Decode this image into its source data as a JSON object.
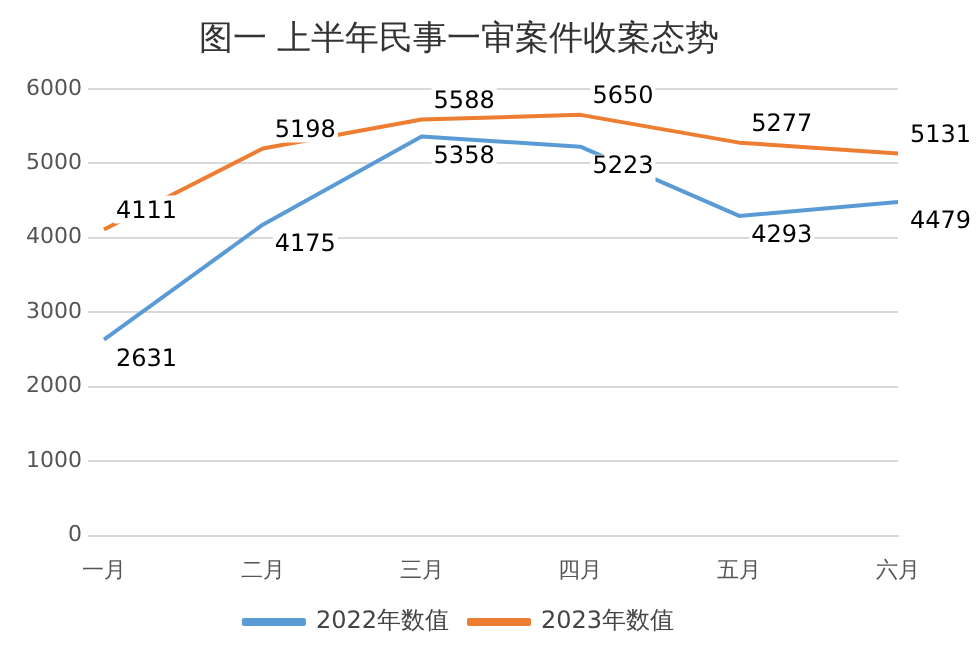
{
  "chart_data": {
    "type": "line",
    "title": "图一 上半年民事一审案件收案态势",
    "categories": [
      "一月",
      "二月",
      "三月",
      "四月",
      "五月",
      "六月"
    ],
    "series": [
      {
        "name": "2022年数值",
        "color": "#5b9bd5",
        "values": [
          2631,
          4175,
          5358,
          5223,
          4293,
          4479
        ]
      },
      {
        "name": "2023年数值",
        "color": "#ed7d31",
        "values": [
          4111,
          5198,
          5588,
          5650,
          5277,
          5131
        ]
      }
    ],
    "ylim": [
      0,
      6000
    ],
    "yticks": [
      0,
      1000,
      2000,
      3000,
      4000,
      5000,
      6000
    ],
    "grid": "y",
    "legend": "bottom",
    "marker": "none",
    "data_labels": true
  }
}
